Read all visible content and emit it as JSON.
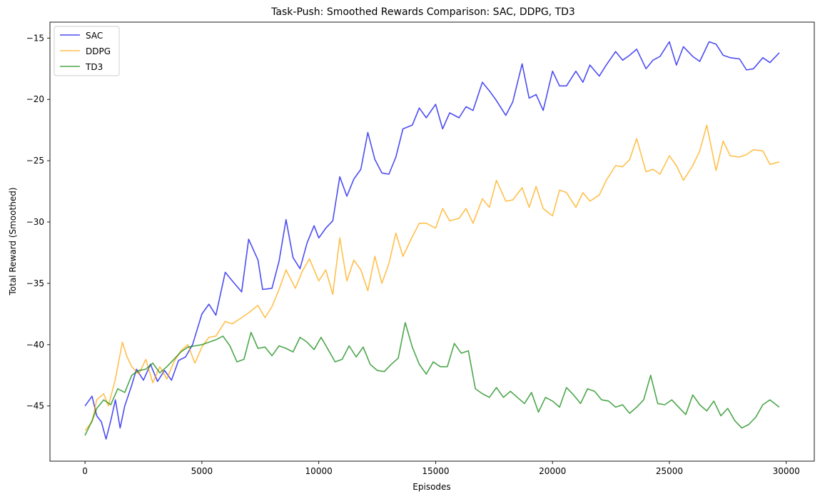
{
  "chart_data": {
    "type": "line",
    "title": "Task-Push: Smoothed Rewards Comparison: SAC, DDPG, TD3",
    "xlabel": "Episodes",
    "ylabel": "Total Reward (Smoothed)",
    "xlim": [
      -1500,
      31200
    ],
    "ylim": [
      -49.5,
      -13.7
    ],
    "xticks": [
      0,
      5000,
      10000,
      15000,
      20000,
      25000,
      30000
    ],
    "yticks": [
      -45,
      -40,
      -35,
      -30,
      -25,
      -20,
      -15
    ],
    "legend_position": "top-left",
    "grid": false,
    "series": [
      {
        "name": "SAC",
        "color": "#0000ee",
        "points": [
          [
            0,
            -45
          ],
          [
            300,
            -44.2
          ],
          [
            500,
            -45.8
          ],
          [
            700,
            -46.3
          ],
          [
            900,
            -47.7
          ],
          [
            1100,
            -46.2
          ],
          [
            1300,
            -44.5
          ],
          [
            1500,
            -46.8
          ],
          [
            1700,
            -45
          ],
          [
            2000,
            -43.3
          ],
          [
            2200,
            -42
          ],
          [
            2500,
            -42.9
          ],
          [
            2800,
            -41.6
          ],
          [
            3100,
            -43
          ],
          [
            3400,
            -42.1
          ],
          [
            3700,
            -42.9
          ],
          [
            4000,
            -41.3
          ],
          [
            4300,
            -41
          ],
          [
            4600,
            -40
          ],
          [
            5000,
            -37.5
          ],
          [
            5300,
            -36.7
          ],
          [
            5600,
            -37.6
          ],
          [
            6000,
            -34.1
          ],
          [
            6300,
            -34.8
          ],
          [
            6700,
            -35.7
          ],
          [
            7000,
            -31.4
          ],
          [
            7400,
            -33.1
          ],
          [
            7600,
            -35.5
          ],
          [
            8000,
            -35.4
          ],
          [
            8300,
            -33.2
          ],
          [
            8600,
            -29.8
          ],
          [
            8900,
            -32.9
          ],
          [
            9200,
            -33.8
          ],
          [
            9500,
            -31.7
          ],
          [
            9800,
            -30.3
          ],
          [
            10000,
            -31.3
          ],
          [
            10300,
            -30.5
          ],
          [
            10600,
            -29.9
          ],
          [
            10900,
            -26.3
          ],
          [
            11200,
            -27.9
          ],
          [
            11500,
            -26.5
          ],
          [
            11800,
            -25.7
          ],
          [
            12100,
            -22.7
          ],
          [
            12400,
            -24.9
          ],
          [
            12700,
            -26
          ],
          [
            13000,
            -26.1
          ],
          [
            13300,
            -24.7
          ],
          [
            13600,
            -22.4
          ],
          [
            14000,
            -22.1
          ],
          [
            14300,
            -20.7
          ],
          [
            14600,
            -21.5
          ],
          [
            15000,
            -20.4
          ],
          [
            15300,
            -22.4
          ],
          [
            15600,
            -21.1
          ],
          [
            16000,
            -21.5
          ],
          [
            16300,
            -20.6
          ],
          [
            16600,
            -20.9
          ],
          [
            17000,
            -18.6
          ],
          [
            17300,
            -19.3
          ],
          [
            17600,
            -20.1
          ],
          [
            18000,
            -21.3
          ],
          [
            18300,
            -20.2
          ],
          [
            18700,
            -17.1
          ],
          [
            19000,
            -19.9
          ],
          [
            19300,
            -19.6
          ],
          [
            19600,
            -20.9
          ],
          [
            20000,
            -17.7
          ],
          [
            20300,
            -18.9
          ],
          [
            20600,
            -18.9
          ],
          [
            21000,
            -17.7
          ],
          [
            21300,
            -18.6
          ],
          [
            21600,
            -17.2
          ],
          [
            22000,
            -18.1
          ],
          [
            22300,
            -17.2
          ],
          [
            22700,
            -16.1
          ],
          [
            23000,
            -16.8
          ],
          [
            23300,
            -16.4
          ],
          [
            23600,
            -15.9
          ],
          [
            24000,
            -17.5
          ],
          [
            24300,
            -16.8
          ],
          [
            24600,
            -16.5
          ],
          [
            25000,
            -15.3
          ],
          [
            25300,
            -17.2
          ],
          [
            25600,
            -15.7
          ],
          [
            26000,
            -16.5
          ],
          [
            26300,
            -16.9
          ],
          [
            26700,
            -15.3
          ],
          [
            27000,
            -15.5
          ],
          [
            27300,
            -16.4
          ],
          [
            27600,
            -16.6
          ],
          [
            28000,
            -16.7
          ],
          [
            28300,
            -17.6
          ],
          [
            28600,
            -17.5
          ],
          [
            29000,
            -16.6
          ],
          [
            29300,
            -17
          ],
          [
            29700,
            -16.2
          ]
        ]
      },
      {
        "name": "DDPG",
        "color": "#ffa500",
        "points": [
          [
            0,
            -47
          ],
          [
            300,
            -46.3
          ],
          [
            500,
            -44.5
          ],
          [
            800,
            -44
          ],
          [
            1000,
            -45
          ],
          [
            1300,
            -42.8
          ],
          [
            1600,
            -39.8
          ],
          [
            1800,
            -41
          ],
          [
            2000,
            -41.8
          ],
          [
            2300,
            -42.4
          ],
          [
            2600,
            -41.2
          ],
          [
            2900,
            -43.1
          ],
          [
            3200,
            -41.8
          ],
          [
            3500,
            -42.8
          ],
          [
            3800,
            -41.4
          ],
          [
            4100,
            -40.5
          ],
          [
            4400,
            -40
          ],
          [
            4700,
            -41.5
          ],
          [
            5000,
            -40.2
          ],
          [
            5300,
            -39.4
          ],
          [
            5600,
            -39.3
          ],
          [
            6000,
            -38.1
          ],
          [
            6300,
            -38.3
          ],
          [
            6700,
            -37.8
          ],
          [
            7000,
            -37.4
          ],
          [
            7400,
            -36.8
          ],
          [
            7700,
            -37.8
          ],
          [
            8000,
            -36.9
          ],
          [
            8300,
            -35.5
          ],
          [
            8600,
            -33.9
          ],
          [
            9000,
            -35.4
          ],
          [
            9300,
            -34
          ],
          [
            9600,
            -33
          ],
          [
            10000,
            -34.8
          ],
          [
            10300,
            -33.9
          ],
          [
            10600,
            -35.9
          ],
          [
            10900,
            -31.3
          ],
          [
            11200,
            -34.8
          ],
          [
            11500,
            -33.1
          ],
          [
            11800,
            -33.9
          ],
          [
            12100,
            -35.6
          ],
          [
            12400,
            -32.8
          ],
          [
            12700,
            -35
          ],
          [
            13000,
            -33.4
          ],
          [
            13300,
            -30.9
          ],
          [
            13600,
            -32.8
          ],
          [
            14000,
            -31.2
          ],
          [
            14300,
            -30.1
          ],
          [
            14600,
            -30.1
          ],
          [
            15000,
            -30.5
          ],
          [
            15300,
            -28.9
          ],
          [
            15600,
            -29.9
          ],
          [
            16000,
            -29.7
          ],
          [
            16300,
            -28.9
          ],
          [
            16600,
            -30.1
          ],
          [
            17000,
            -28.1
          ],
          [
            17300,
            -28.8
          ],
          [
            17600,
            -26.6
          ],
          [
            18000,
            -28.3
          ],
          [
            18300,
            -28.2
          ],
          [
            18700,
            -27.2
          ],
          [
            19000,
            -28.8
          ],
          [
            19300,
            -27.1
          ],
          [
            19600,
            -28.9
          ],
          [
            20000,
            -29.5
          ],
          [
            20300,
            -27.4
          ],
          [
            20600,
            -27.6
          ],
          [
            21000,
            -28.8
          ],
          [
            21300,
            -27.6
          ],
          [
            21600,
            -28.3
          ],
          [
            22000,
            -27.8
          ],
          [
            22300,
            -26.6
          ],
          [
            22700,
            -25.4
          ],
          [
            23000,
            -25.5
          ],
          [
            23300,
            -24.9
          ],
          [
            23600,
            -23.2
          ],
          [
            24000,
            -25.9
          ],
          [
            24300,
            -25.7
          ],
          [
            24600,
            -26.1
          ],
          [
            25000,
            -24.6
          ],
          [
            25300,
            -25.4
          ],
          [
            25600,
            -26.6
          ],
          [
            26000,
            -25.4
          ],
          [
            26300,
            -24.2
          ],
          [
            26600,
            -22.1
          ],
          [
            27000,
            -25.8
          ],
          [
            27300,
            -23.4
          ],
          [
            27600,
            -24.6
          ],
          [
            28000,
            -24.7
          ],
          [
            28300,
            -24.5
          ],
          [
            28600,
            -24.1
          ],
          [
            29000,
            -24.2
          ],
          [
            29300,
            -25.3
          ],
          [
            29700,
            -25.1
          ]
        ]
      },
      {
        "name": "TD3",
        "color": "#008000",
        "points": [
          [
            0,
            -47.4
          ],
          [
            300,
            -46.2
          ],
          [
            500,
            -45.2
          ],
          [
            800,
            -44.5
          ],
          [
            1100,
            -44.9
          ],
          [
            1400,
            -43.6
          ],
          [
            1700,
            -43.9
          ],
          [
            2000,
            -42.5
          ],
          [
            2300,
            -42.1
          ],
          [
            2600,
            -42
          ],
          [
            2900,
            -41.5
          ],
          [
            3200,
            -42.3
          ],
          [
            3500,
            -41.8
          ],
          [
            3800,
            -41.2
          ],
          [
            4100,
            -40.6
          ],
          [
            4400,
            -40.2
          ],
          [
            4700,
            -40.1
          ],
          [
            5000,
            -40
          ],
          [
            5300,
            -39.8
          ],
          [
            5600,
            -39.6
          ],
          [
            5900,
            -39.3
          ],
          [
            6200,
            -40.1
          ],
          [
            6500,
            -41.4
          ],
          [
            6800,
            -41.2
          ],
          [
            7100,
            -39
          ],
          [
            7400,
            -40.3
          ],
          [
            7700,
            -40.2
          ],
          [
            8000,
            -40.9
          ],
          [
            8300,
            -40.1
          ],
          [
            8600,
            -40.3
          ],
          [
            8900,
            -40.6
          ],
          [
            9200,
            -39.4
          ],
          [
            9500,
            -39.8
          ],
          [
            9800,
            -40.4
          ],
          [
            10100,
            -39.4
          ],
          [
            10400,
            -40.4
          ],
          [
            10700,
            -41.4
          ],
          [
            11000,
            -41.2
          ],
          [
            11300,
            -40.1
          ],
          [
            11600,
            -41
          ],
          [
            11900,
            -40.2
          ],
          [
            12200,
            -41.6
          ],
          [
            12500,
            -42.1
          ],
          [
            12800,
            -42.2
          ],
          [
            13100,
            -41.6
          ],
          [
            13400,
            -41.1
          ],
          [
            13700,
            -38.2
          ],
          [
            14000,
            -40.2
          ],
          [
            14300,
            -41.6
          ],
          [
            14600,
            -42.4
          ],
          [
            14900,
            -41.4
          ],
          [
            15200,
            -41.8
          ],
          [
            15500,
            -41.8
          ],
          [
            15800,
            -39.9
          ],
          [
            16100,
            -40.7
          ],
          [
            16400,
            -40.5
          ],
          [
            16700,
            -43.6
          ],
          [
            17000,
            -44
          ],
          [
            17300,
            -44.3
          ],
          [
            17600,
            -43.5
          ],
          [
            17900,
            -44.3
          ],
          [
            18200,
            -43.8
          ],
          [
            18500,
            -44.3
          ],
          [
            18800,
            -44.8
          ],
          [
            19100,
            -43.9
          ],
          [
            19400,
            -45.5
          ],
          [
            19700,
            -44.3
          ],
          [
            20000,
            -44.6
          ],
          [
            20300,
            -45.1
          ],
          [
            20600,
            -43.5
          ],
          [
            20900,
            -44.1
          ],
          [
            21200,
            -44.8
          ],
          [
            21500,
            -43.6
          ],
          [
            21800,
            -43.8
          ],
          [
            22100,
            -44.5
          ],
          [
            22400,
            -44.6
          ],
          [
            22700,
            -45.1
          ],
          [
            23000,
            -44.9
          ],
          [
            23300,
            -45.6
          ],
          [
            23600,
            -45.1
          ],
          [
            23900,
            -44.5
          ],
          [
            24200,
            -42.5
          ],
          [
            24500,
            -44.8
          ],
          [
            24800,
            -44.9
          ],
          [
            25100,
            -44.5
          ],
          [
            25400,
            -45.1
          ],
          [
            25700,
            -45.7
          ],
          [
            26000,
            -44.1
          ],
          [
            26300,
            -44.9
          ],
          [
            26600,
            -45.4
          ],
          [
            26900,
            -44.6
          ],
          [
            27200,
            -45.8
          ],
          [
            27500,
            -45.2
          ],
          [
            27800,
            -46.2
          ],
          [
            28100,
            -46.8
          ],
          [
            28400,
            -46.5
          ],
          [
            28700,
            -45.9
          ],
          [
            29000,
            -44.9
          ],
          [
            29300,
            -44.5
          ],
          [
            29700,
            -45.1
          ]
        ]
      }
    ]
  }
}
